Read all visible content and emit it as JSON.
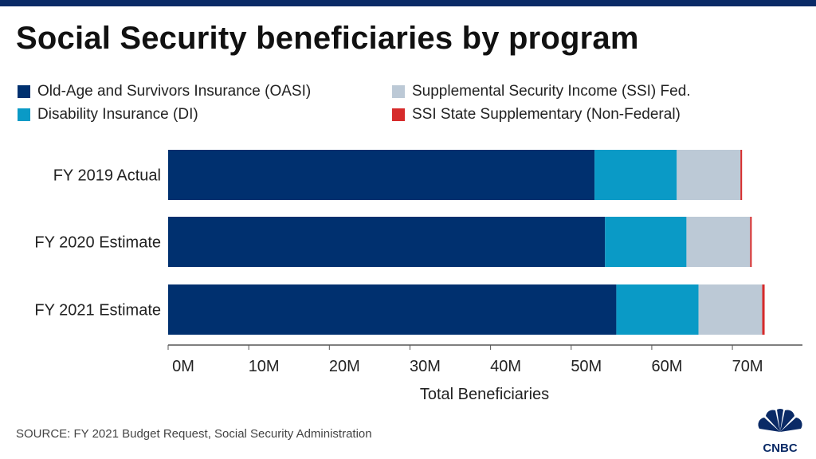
{
  "title": "Social Security beneficiaries by program",
  "source": "SOURCE: FY 2021 Budget Request, Social Security Administration",
  "logo_text": "CNBC",
  "colors": {
    "oasi": "#00306f",
    "di": "#0a9ac6",
    "ssi_fed": "#bcc9d6",
    "ssi_state": "#d62b2b",
    "axis": "#555555",
    "topbar": "#0a2a66"
  },
  "chart_data": {
    "type": "bar",
    "orientation": "horizontal",
    "stacked": true,
    "categories": [
      "FY 2019 Actual",
      "FY 2020 Estimate",
      "FY 2021 Estimate"
    ],
    "series": [
      {
        "name": "Old-Age and Survivors Insurance (OASI)",
        "values": [
          52.9,
          54.2,
          55.6
        ]
      },
      {
        "name": "Disability Insurance (DI)",
        "values": [
          10.2,
          10.1,
          10.2
        ]
      },
      {
        "name": "Supplemental Security Income (SSI) Fed.",
        "values": [
          7.9,
          7.9,
          7.9
        ]
      },
      {
        "name": "SSI State Supplementary (Non-Federal)",
        "values": [
          0.2,
          0.2,
          0.3
        ]
      }
    ],
    "xlim": [
      0,
      78
    ],
    "xticks": [
      0,
      10,
      20,
      30,
      40,
      50,
      60,
      70
    ],
    "xtick_labels": [
      "0M",
      "10M",
      "20M",
      "30M",
      "40M",
      "50M",
      "60M",
      "70M"
    ],
    "xlabel": "Total Beneficiaries",
    "ylabel": "",
    "legend_position": "top",
    "grid": false
  }
}
